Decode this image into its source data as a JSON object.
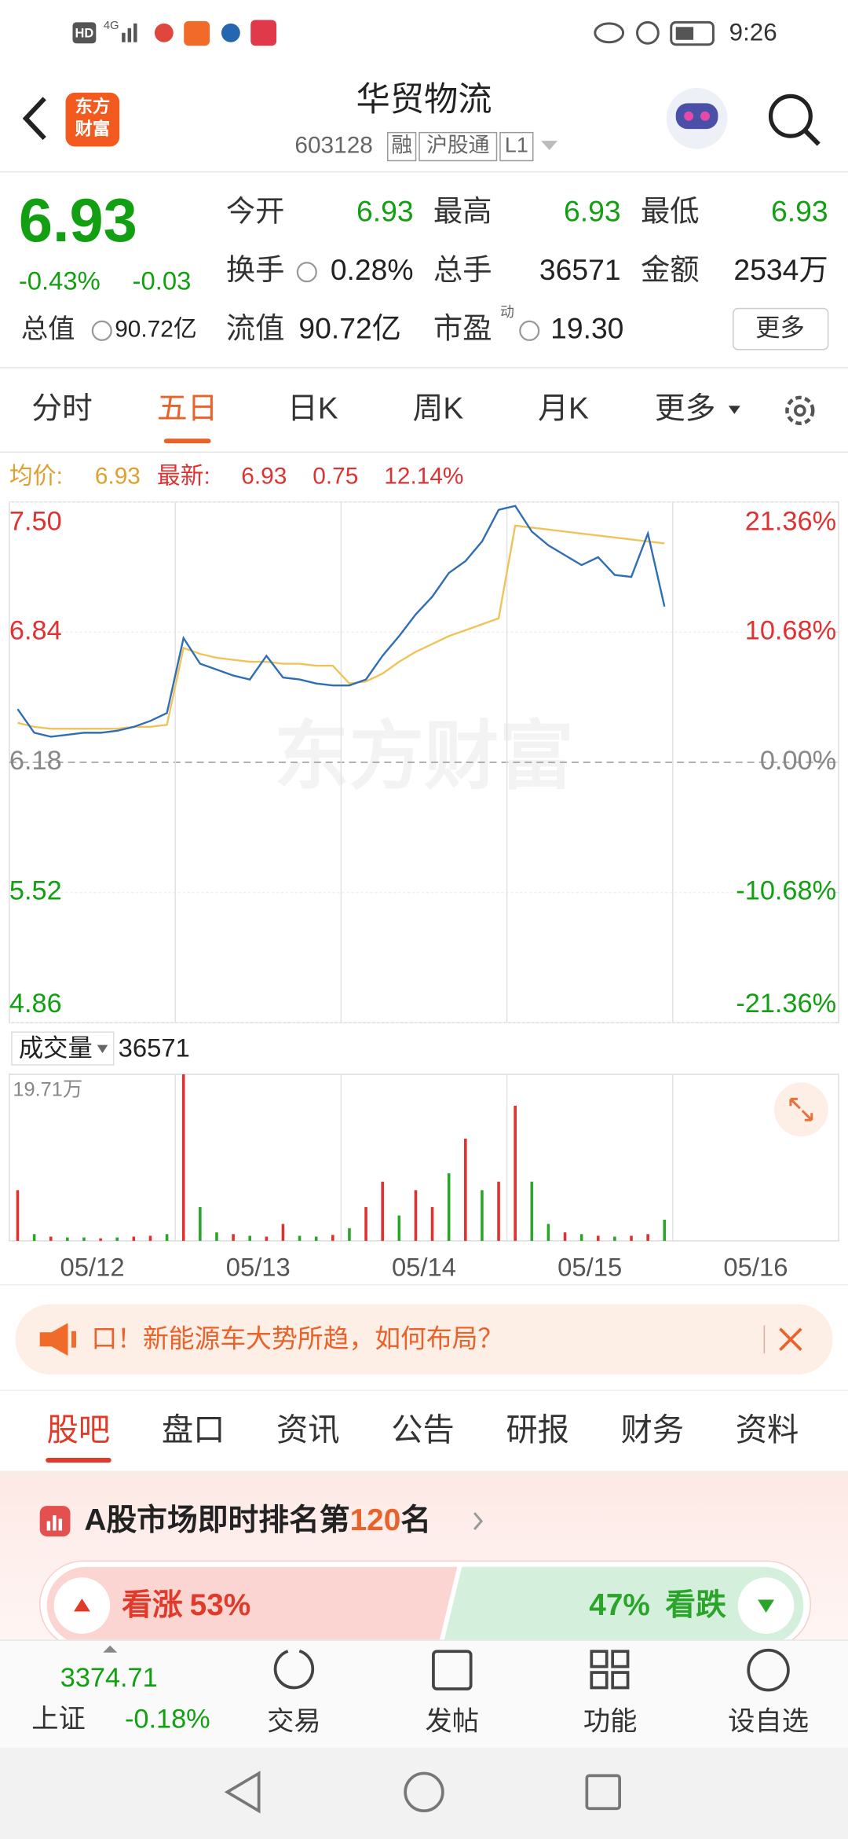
{
  "status_bar": {
    "hd": "HD",
    "network": "4G",
    "time": "9:26"
  },
  "header": {
    "logo": [
      "东方",
      "财富"
    ],
    "title": "华贸物流",
    "code": "603128",
    "tags": [
      "融",
      "沪股通",
      "L1"
    ]
  },
  "quote": {
    "price": "6.93",
    "change_pct": "-0.43%",
    "change": "-0.03",
    "stats": [
      {
        "label": "今开",
        "value": "6.93"
      },
      {
        "label": "最高",
        "value": "6.93"
      },
      {
        "label": "最低",
        "value": "6.93"
      },
      {
        "label": "换手",
        "value": "0.28%"
      },
      {
        "label": "总手",
        "value": "36571"
      },
      {
        "label": "金额",
        "value": "2534万"
      },
      {
        "label": "总值",
        "value": "90.72亿"
      },
      {
        "label": "流值",
        "value": "90.72亿"
      },
      {
        "label": "市盈",
        "sup": "动",
        "value": "19.30"
      }
    ],
    "more": "更多"
  },
  "tabs": {
    "items": [
      "分时",
      "五日",
      "日K",
      "周K",
      "月K",
      "更多"
    ],
    "active": 1
  },
  "chart_info": {
    "avg_label": "均价:",
    "avg": "6.93",
    "latest_label": "最新:",
    "latest": "6.93",
    "change": "0.75",
    "pct": "12.14%"
  },
  "watermark": "东方财富",
  "volume_info": {
    "label": "成交量",
    "value": "36571"
  },
  "chart_data": [
    {
      "type": "line",
      "xlim": [
        0,
        5
      ],
      "ylim": [
        4.86,
        7.5
      ],
      "yticks": [
        {
          "value": 7.5,
          "label": "7.50"
        },
        {
          "value": 6.84,
          "label": "6.84"
        },
        {
          "value": 6.18,
          "label": "6.18"
        },
        {
          "value": 5.52,
          "label": "5.52"
        },
        {
          "value": 4.86,
          "label": "4.86"
        }
      ],
      "y2lim": [
        -21.36,
        21.36
      ],
      "y2ticks": [
        {
          "value": 21.36,
          "label": "21.36%"
        },
        {
          "value": 10.68,
          "label": "10.68%"
        },
        {
          "value": 0,
          "label": "0.00%"
        },
        {
          "value": -10.68,
          "label": "-10.68%"
        },
        {
          "value": -21.36,
          "label": "-21.36%"
        }
      ],
      "x": [
        0.05,
        0.15,
        0.25,
        0.35,
        0.45,
        0.55,
        0.65,
        0.75,
        0.85,
        0.95,
        1.05,
        1.15,
        1.25,
        1.35,
        1.45,
        1.55,
        1.65,
        1.75,
        1.85,
        1.95,
        2.05,
        2.15,
        2.25,
        2.35,
        2.45,
        2.55,
        2.65,
        2.75,
        2.85,
        2.95,
        3.05,
        3.15,
        3.25,
        3.35,
        3.45,
        3.55,
        3.65,
        3.75,
        3.85,
        3.95
      ],
      "series": [
        {
          "color": "#2f6db5",
          "values": [
            6.45,
            6.33,
            6.31,
            6.32,
            6.33,
            6.33,
            6.34,
            6.36,
            6.39,
            6.43,
            6.81,
            6.68,
            6.65,
            6.62,
            6.6,
            6.72,
            6.61,
            6.6,
            6.58,
            6.57,
            6.57,
            6.6,
            6.72,
            6.82,
            6.93,
            7.02,
            7.14,
            7.2,
            7.3,
            7.46,
            7.48,
            7.35,
            7.28,
            7.23,
            7.18,
            7.22,
            7.13,
            7.12,
            7.34,
            6.97
          ]
        },
        {
          "color": "#f0c35a",
          "values": [
            6.38,
            6.36,
            6.35,
            6.35,
            6.35,
            6.35,
            6.35,
            6.36,
            6.36,
            6.37,
            6.76,
            6.73,
            6.71,
            6.7,
            6.69,
            6.69,
            6.68,
            6.68,
            6.67,
            6.67,
            6.58,
            6.59,
            6.63,
            6.69,
            6.74,
            6.78,
            6.82,
            6.85,
            6.88,
            6.91,
            7.38,
            7.37,
            7.36,
            7.35,
            7.34,
            7.33,
            7.32,
            7.31,
            7.3,
            7.29
          ]
        }
      ]
    },
    {
      "type": "bar",
      "xlim": [
        0,
        5
      ],
      "ylim": [
        0,
        197100
      ],
      "yticks": [
        {
          "value": 197100,
          "label": "19.71万"
        }
      ],
      "xticks": [
        {
          "value": 0.5,
          "label": "05/12"
        },
        {
          "value": 1.5,
          "label": "05/13"
        },
        {
          "value": 2.5,
          "label": "05/14"
        },
        {
          "value": 3.5,
          "label": "05/15"
        },
        {
          "value": 4.5,
          "label": "05/16"
        }
      ],
      "x": [
        0.05,
        0.15,
        0.25,
        0.35,
        0.45,
        0.55,
        0.65,
        0.75,
        0.85,
        0.95,
        1.05,
        1.15,
        1.25,
        1.35,
        1.45,
        1.55,
        1.65,
        1.75,
        1.85,
        1.95,
        2.05,
        2.15,
        2.25,
        2.35,
        2.45,
        2.55,
        2.65,
        2.75,
        2.85,
        2.95,
        3.05,
        3.15,
        3.25,
        3.35,
        3.45,
        3.55,
        3.65,
        3.75,
        3.85,
        3.95
      ],
      "values": [
        60000,
        8000,
        5000,
        4000,
        4000,
        3000,
        4000,
        5000,
        6000,
        8000,
        197100,
        40000,
        10000,
        8000,
        6000,
        5000,
        20000,
        6000,
        5000,
        7000,
        15000,
        40000,
        70000,
        30000,
        60000,
        40000,
        80000,
        121000,
        60000,
        70000,
        160000,
        70000,
        20000,
        10000,
        8000,
        6000,
        5000,
        6000,
        8000,
        25000
      ],
      "colors": [
        "#e03030",
        "#2aa52a",
        "#e03030",
        "#2aa52a",
        "#2aa52a",
        "#e03030",
        "#2aa52a",
        "#e03030",
        "#e03030",
        "#2aa52a",
        "#e03030",
        "#2aa52a",
        "#2aa52a",
        "#e03030",
        "#2aa52a",
        "#e03030",
        "#e03030",
        "#2aa52a",
        "#2aa52a",
        "#e03030",
        "#2aa52a",
        "#e03030",
        "#e03030",
        "#2aa52a",
        "#e03030",
        "#e03030",
        "#2aa52a",
        "#e03030",
        "#2aa52a",
        "#e03030",
        "#e03030",
        "#2aa52a",
        "#2aa52a",
        "#e03030",
        "#2aa52a",
        "#e03030",
        "#2aa52a",
        "#e03030",
        "#e03030",
        "#2aa52a"
      ]
    }
  ],
  "banner": {
    "text": "口！新能源车大势所趋，如何布局？"
  },
  "section_tabs": {
    "items": [
      "股吧",
      "盘口",
      "资讯",
      "公告",
      "研报",
      "财务",
      "资料"
    ],
    "active": 0
  },
  "rank": {
    "prefix": "A股市场即时排名第",
    "rank": "120",
    "suffix": "名"
  },
  "sentiment": {
    "names": [
      "看涨",
      "看跌"
    ],
    "values": [
      53,
      47
    ],
    "value_labels": [
      "53%",
      "47%"
    ]
  },
  "bottom_nav": {
    "index_name": "上证",
    "index_value": "3374.71",
    "index_change": "-0.18%",
    "items": [
      "交易",
      "发帖",
      "功能",
      "设自选"
    ]
  }
}
